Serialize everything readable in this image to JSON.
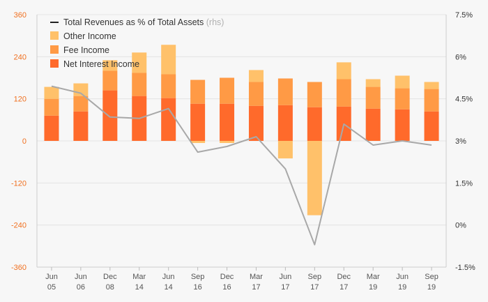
{
  "chart_data": {
    "type": "bar",
    "stacked": true,
    "categories": [
      [
        "Jun",
        "05"
      ],
      [
        "Jun",
        "06"
      ],
      [
        "Dec",
        "08"
      ],
      [
        "Mar",
        "14"
      ],
      [
        "Jun",
        "14"
      ],
      [
        "Sep",
        "16"
      ],
      [
        "Dec",
        "16"
      ],
      [
        "Mar",
        "17"
      ],
      [
        "Jun",
        "17"
      ],
      [
        "Sep",
        "17"
      ],
      [
        "Dec",
        "17"
      ],
      [
        "Mar",
        "19"
      ],
      [
        "Jun",
        "19"
      ],
      [
        "Sep",
        "19"
      ]
    ],
    "series": [
      {
        "name": "Net Interest Income",
        "color": "#ff6a2b",
        "values": [
          72,
          84,
          144,
          128,
          122,
          106,
          106,
          100,
          102,
          96,
          98,
          92,
          90,
          84
        ]
      },
      {
        "name": "Fee Income",
        "color": "#ff9a45",
        "values": [
          48,
          44,
          56,
          66,
          68,
          68,
          74,
          68,
          76,
          72,
          78,
          62,
          60,
          64
        ]
      },
      {
        "name": "Other Income",
        "color": "#ffc16a",
        "values": [
          34,
          36,
          30,
          58,
          84,
          -6,
          -6,
          34,
          -50,
          -212,
          48,
          22,
          36,
          20
        ]
      }
    ],
    "line_series": {
      "name": "Total Revenues as % of Total Assets",
      "suffix": "(rhs)",
      "color": "#a8a8a8",
      "values": [
        4.95,
        4.7,
        3.85,
        3.8,
        4.15,
        2.6,
        2.8,
        3.15,
        2.0,
        -0.7,
        3.6,
        2.85,
        3.0,
        2.85
      ]
    },
    "legend_marker_color": "#222222",
    "legend_placement": "top-left",
    "y_left": {
      "min": -360,
      "max": 360,
      "ticks": [
        360,
        240,
        120,
        0,
        -120,
        -240,
        -360
      ]
    },
    "y_right": {
      "min": -1.5,
      "max": 7.5,
      "ticks": [
        7.5,
        6,
        4.5,
        3,
        1.5,
        0,
        -1.5
      ]
    },
    "y_right_labels": [
      "7.5%",
      "6%",
      "4.5%",
      "3%",
      "1.5%",
      "0%",
      "-1.5%"
    ],
    "grid": true
  }
}
